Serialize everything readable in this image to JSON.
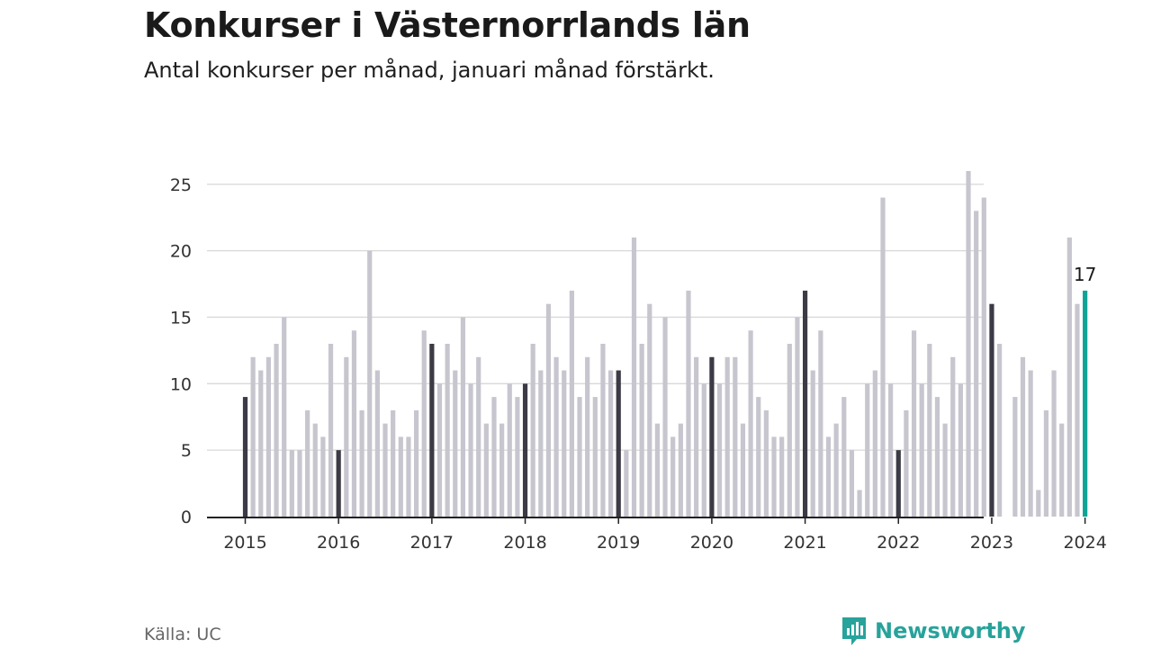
{
  "title": "Konkurser i Västernorrlands län",
  "subtitle": "Antal konkurser per månad, januari månad förstärkt.",
  "source": "Källa: UC",
  "brand": {
    "name": "Newsworthy",
    "icon": "newsworthy-logo-icon"
  },
  "colors": {
    "default_bar": "#c7c6cf",
    "january_bar": "#3b3a45",
    "latest_bar": "#10a398",
    "grid": "#d8d8d8",
    "axis": "#222222",
    "brand": "#27a39b"
  },
  "chart_data": {
    "type": "bar",
    "title": "Konkurser i Västernorrlands län",
    "subtitle": "Antal konkurser per månad, januari månad förstärkt.",
    "xlabel": "",
    "ylabel": "",
    "ylim": [
      0,
      26
    ],
    "yticks": [
      0,
      5,
      10,
      15,
      20,
      25
    ],
    "xtick_labels": [
      "2015",
      "2016",
      "2017",
      "2018",
      "2019",
      "2020",
      "2021",
      "2022",
      "2023",
      "2024"
    ],
    "grid": true,
    "start": "2015-01",
    "values": [
      9,
      12,
      11,
      12,
      13,
      15,
      5,
      5,
      8,
      7,
      6,
      13,
      5,
      12,
      14,
      8,
      20,
      11,
      7,
      8,
      6,
      6,
      8,
      14,
      13,
      10,
      13,
      11,
      15,
      10,
      12,
      7,
      9,
      7,
      10,
      9,
      10,
      13,
      11,
      16,
      12,
      11,
      17,
      9,
      12,
      9,
      13,
      11,
      11,
      5,
      21,
      13,
      16,
      7,
      15,
      6,
      7,
      17,
      12,
      10,
      12,
      10,
      12,
      12,
      7,
      14,
      9,
      8,
      6,
      6,
      13,
      15,
      17,
      11,
      14,
      6,
      7,
      9,
      5,
      2,
      10,
      11,
      24,
      10,
      5,
      8,
      14,
      10,
      13,
      9,
      7,
      12,
      10,
      26,
      23,
      24,
      16,
      13,
      0,
      9,
      12,
      11,
      2,
      8,
      11,
      7,
      21,
      16,
      17
    ],
    "highlight": "January bars darker; latest month highlighted",
    "annotations": [
      {
        "label": "17",
        "index": 108
      }
    ]
  }
}
